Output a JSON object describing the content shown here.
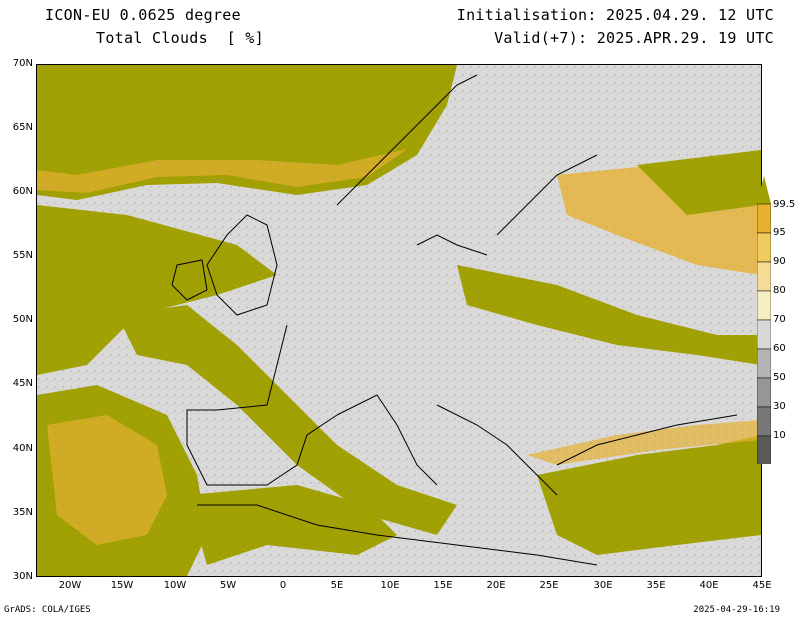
{
  "header": {
    "model": "ICON-EU 0.0625 degree",
    "variable": "Total Clouds  [ %]",
    "initialisation": "Initialisation: 2025.04.29. 12 UTC",
    "valid": "Valid(+7): 2025.APR.29. 19 UTC"
  },
  "axes": {
    "lat_labels": [
      "70N",
      "65N",
      "60N",
      "55N",
      "50N",
      "45N",
      "40N",
      "35N",
      "30N"
    ],
    "lon_labels": [
      "20W",
      "15W",
      "10W",
      "5W",
      "0",
      "5E",
      "10E",
      "15E",
      "20E",
      "25E",
      "30E",
      "35E",
      "40E",
      "45E"
    ]
  },
  "colorbar": {
    "labels": [
      "99.5",
      "95",
      "90",
      "80",
      "70",
      "60",
      "50",
      "30",
      "10"
    ],
    "colors": [
      "#a0a000",
      "#e6b030",
      "#f0cc60",
      "#f5dc96",
      "#f3efc0",
      "#d8d8d8",
      "#b4b4b4",
      "#969696",
      "#787878",
      "#5a5a5a"
    ]
  },
  "map": {
    "background_color": "#d9d9d9",
    "overcast_color": "#a0a000"
  },
  "footer": {
    "credit": "GrADS: COLA/IGES",
    "timestamp": "2025-04-29-16:19"
  }
}
